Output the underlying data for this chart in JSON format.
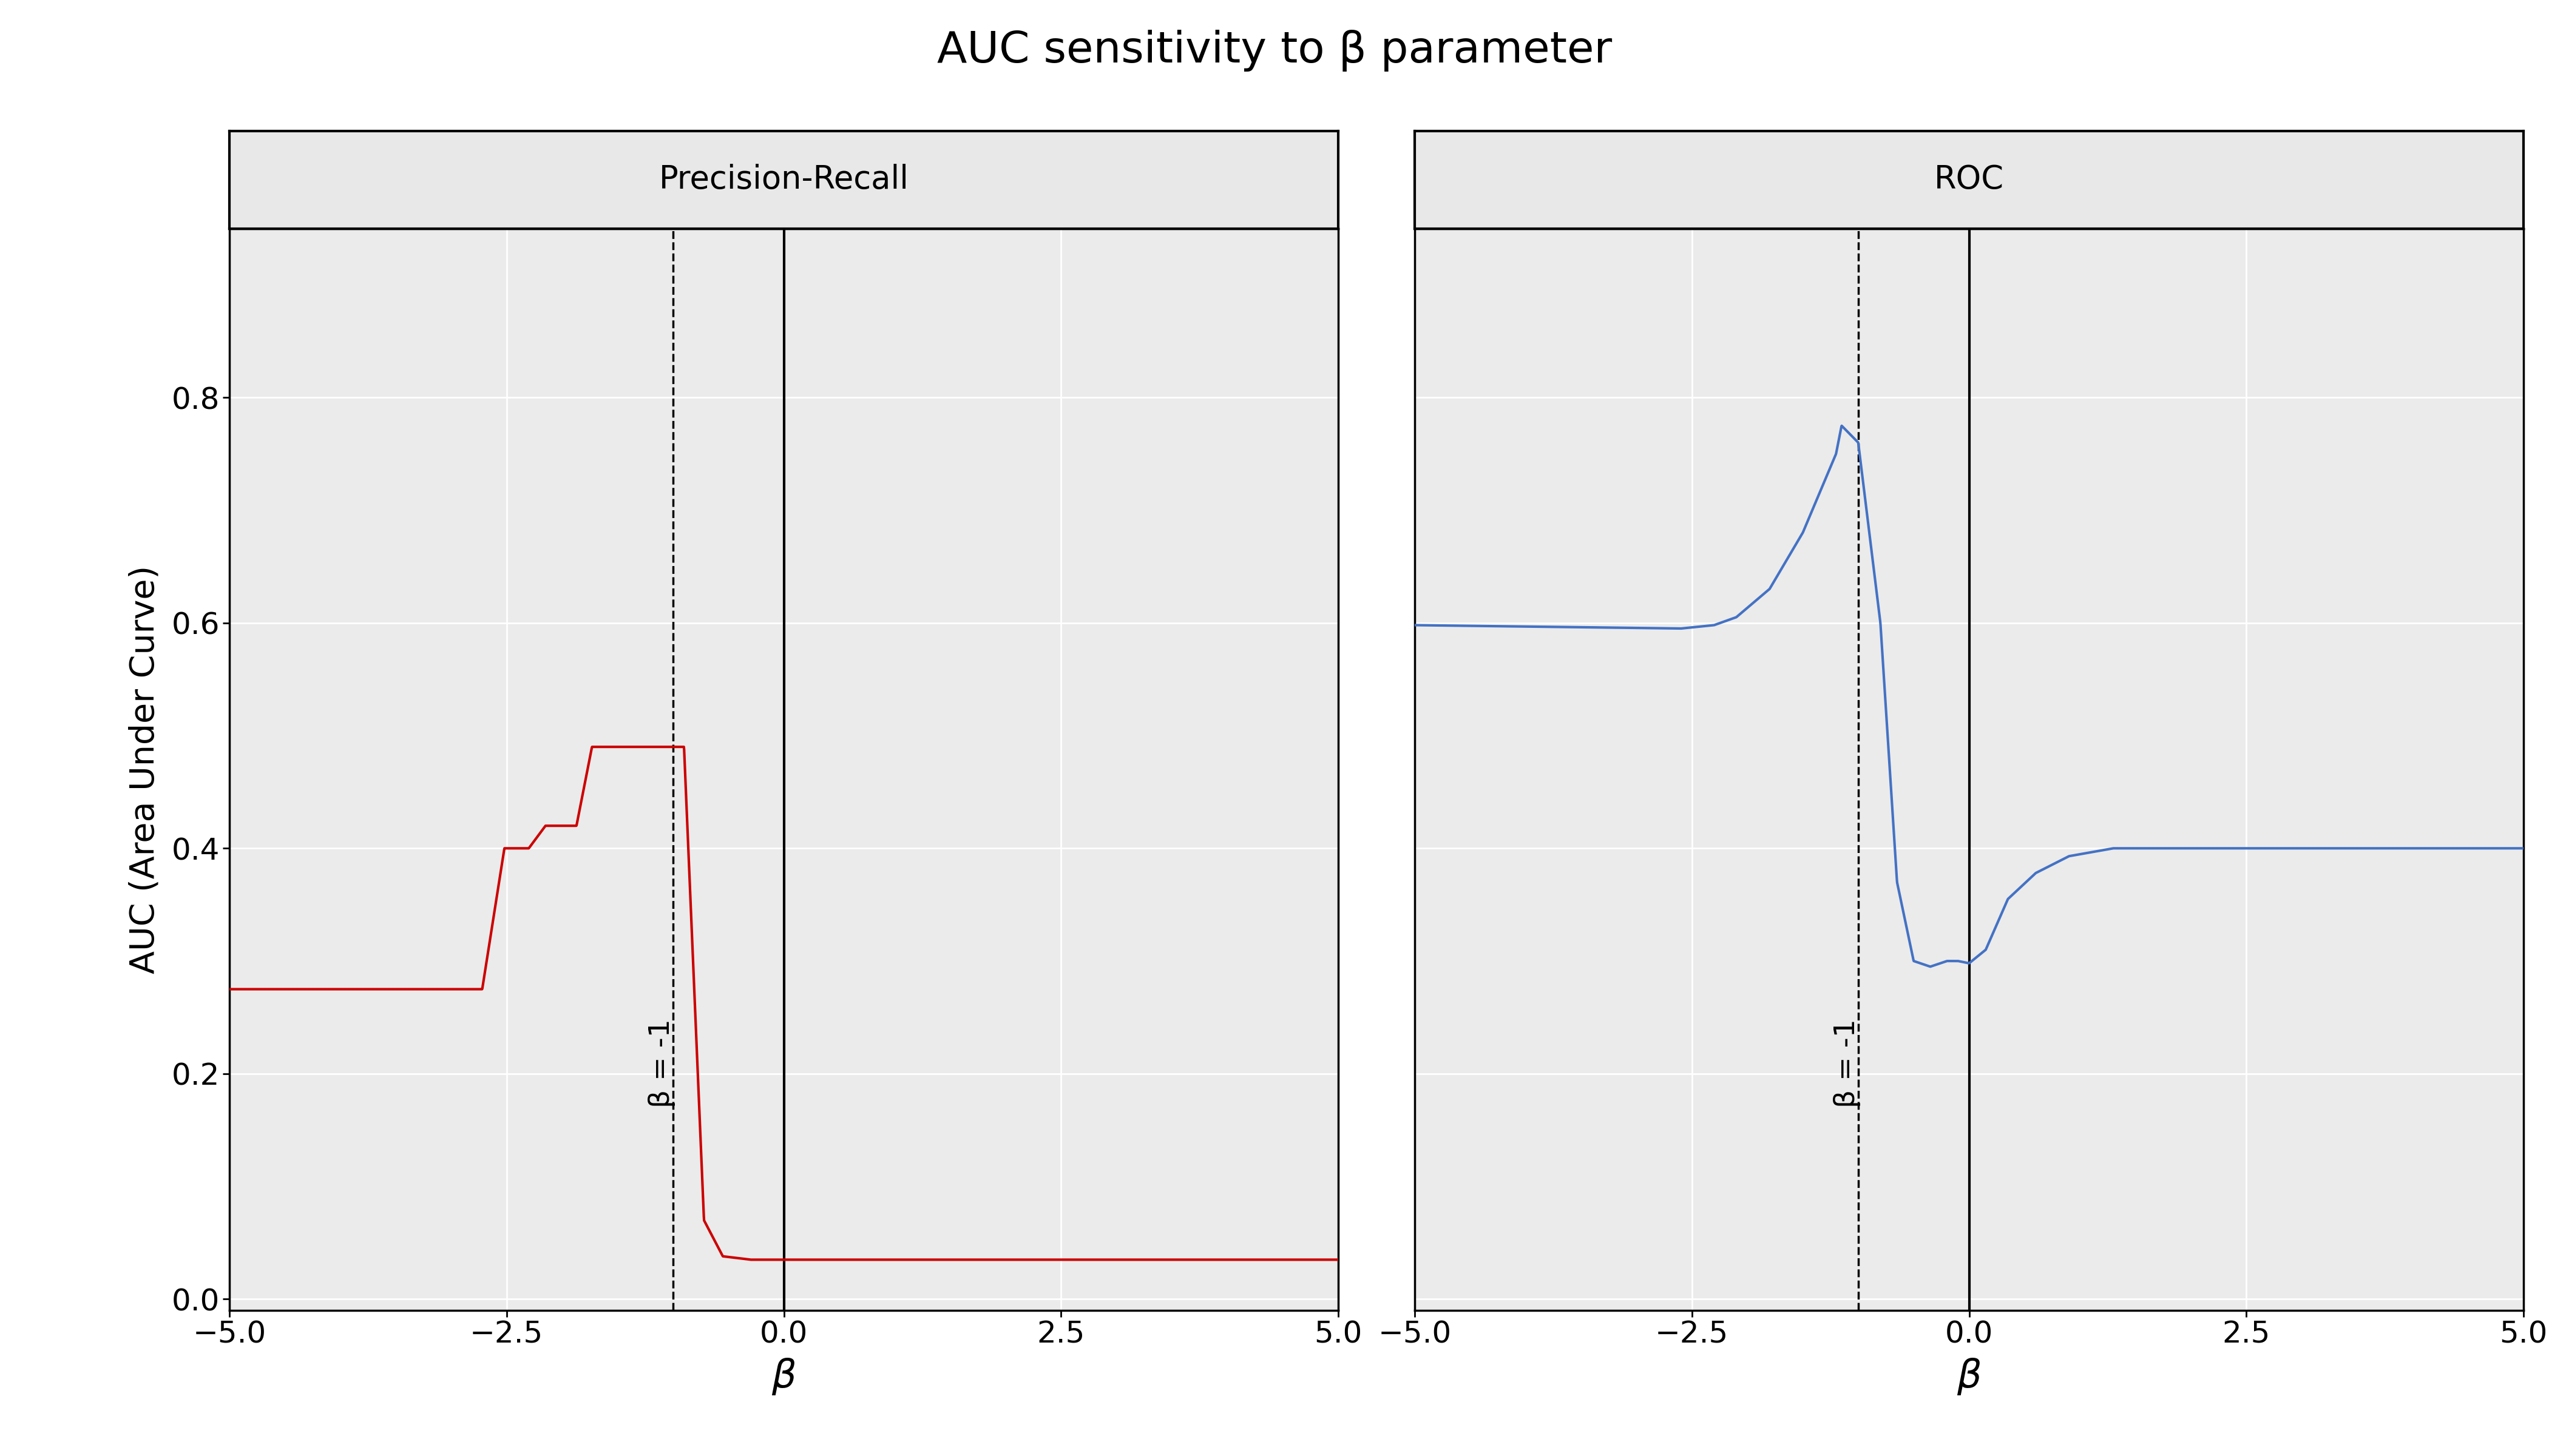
{
  "title": "AUC sensitivity to β parameter",
  "xlabel": "β",
  "ylabel": "AUC (Area Under Curve)",
  "panel_left_title": "Precision-Recall",
  "panel_right_title": "ROC",
  "xlim": [
    -5.0,
    5.0
  ],
  "ylim": [
    -0.01,
    0.95
  ],
  "x_ticks": [
    -5.0,
    -2.5,
    0.0,
    2.5,
    5.0
  ],
  "y_ticks": [
    0.0,
    0.2,
    0.4,
    0.6,
    0.8
  ],
  "vline_dashed_x": -1.0,
  "vline_solid_x": 0.0,
  "beta_label": "β = -1",
  "line_color_left": "#CC0000",
  "line_color_right": "#4472C4",
  "background_color": "#EBEBEB",
  "panel_header_color": "#E8E8E8",
  "grid_color": "#FFFFFF",
  "title_fontsize": 52,
  "label_fontsize": 40,
  "tick_fontsize": 36,
  "panel_title_fontsize": 38,
  "beta_label_fontsize": 34
}
